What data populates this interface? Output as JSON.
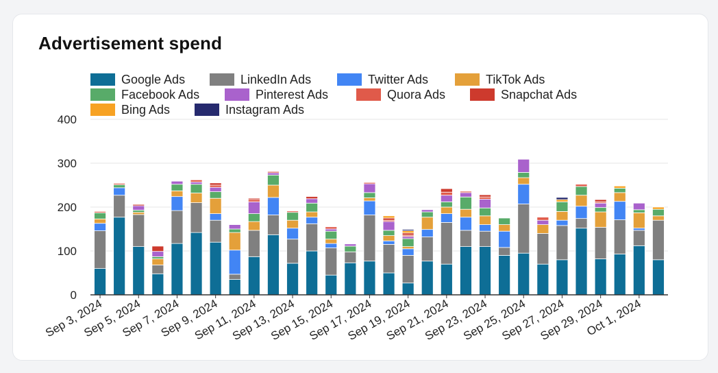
{
  "title": "Advertisement spend",
  "chart_data": {
    "type": "bar",
    "stacked": true,
    "title": "Advertisement spend",
    "xlabel": "",
    "ylabel": "",
    "ylim": [
      0,
      400
    ],
    "y_ticks": [
      0,
      100,
      200,
      300,
      400
    ],
    "grid": true,
    "legend_position": "top-left",
    "categories": [
      "Sep 3, 2024",
      "Sep 4, 2024",
      "Sep 5, 2024",
      "Sep 6, 2024",
      "Sep 7, 2024",
      "Sep 8, 2024",
      "Sep 9, 2024",
      "Sep 10, 2024",
      "Sep 11, 2024",
      "Sep 12, 2024",
      "Sep 13, 2024",
      "Sep 14, 2024",
      "Sep 15, 2024",
      "Sep 16, 2024",
      "Sep 17, 2024",
      "Sep 18, 2024",
      "Sep 19, 2024",
      "Sep 20, 2024",
      "Sep 21, 2024",
      "Sep 22, 2024",
      "Sep 23, 2024",
      "Sep 24, 2024",
      "Sep 25, 2024",
      "Sep 26, 2024",
      "Sep 27, 2024",
      "Sep 28, 2024",
      "Sep 29, 2024",
      "Sep 30, 2024",
      "Oct 1, 2024",
      "Oct 2, 2024"
    ],
    "x_tick_labels": [
      "Sep 3, 2024",
      "",
      "Sep 5, 2024",
      "",
      "Sep 7, 2024",
      "",
      "Sep 9, 2024",
      "",
      "Sep 11, 2024",
      "",
      "Sep 13, 2024",
      "",
      "Sep 15, 2024",
      "",
      "Sep 17, 2024",
      "",
      "Sep 19, 2024",
      "",
      "Sep 21, 2024",
      "",
      "Sep 23, 2024",
      "",
      "Sep 25, 2024",
      "",
      "Sep 27, 2024",
      "",
      "Sep 29, 2024",
      "",
      "Oct 1, 2024",
      ""
    ],
    "series": [
      {
        "name": "Google Ads",
        "color": "#0e6e96",
        "values": [
          60,
          177,
          110,
          48,
          117,
          142,
          120,
          35,
          87,
          137,
          72,
          100,
          45,
          73,
          77,
          50,
          27,
          77,
          70,
          110,
          110,
          90,
          95,
          70,
          80,
          152,
          82,
          93,
          112,
          80
        ]
      },
      {
        "name": "LinkedIn Ads",
        "color": "#808080",
        "values": [
          86,
          50,
          73,
          20,
          75,
          68,
          50,
          12,
          60,
          45,
          55,
          62,
          62,
          25,
          105,
          65,
          63,
          55,
          95,
          37,
          35,
          18,
          112,
          70,
          78,
          22,
          72,
          78,
          35,
          90
        ]
      },
      {
        "name": "Twitter Ads",
        "color": "#4285f4",
        "values": [
          17,
          17,
          0,
          0,
          32,
          0,
          15,
          55,
          0,
          40,
          25,
          15,
          10,
          0,
          32,
          8,
          15,
          17,
          20,
          30,
          15,
          37,
          45,
          0,
          12,
          28,
          0,
          42,
          5,
          0
        ]
      },
      {
        "name": "TikTok Ads",
        "color": "#e4a03a",
        "values": [
          10,
          0,
          5,
          14,
          13,
          22,
          35,
          40,
          20,
          28,
          18,
          12,
          10,
          0,
          7,
          12,
          5,
          28,
          15,
          18,
          20,
          15,
          15,
          20,
          20,
          25,
          35,
          20,
          35,
          10
        ]
      },
      {
        "name": "Facebook Ads",
        "color": "#58ab69",
        "values": [
          14,
          7,
          5,
          5,
          15,
          20,
          15,
          8,
          18,
          23,
          18,
          20,
          18,
          13,
          12,
          12,
          18,
          12,
          12,
          28,
          18,
          15,
          12,
          0,
          22,
          20,
          10,
          10,
          7,
          15
        ]
      },
      {
        "name": "Pinterest Ads",
        "color": "#a962cc",
        "values": [
          0,
          0,
          10,
          12,
          7,
          5,
          10,
          10,
          27,
          5,
          0,
          10,
          5,
          5,
          20,
          20,
          5,
          5,
          15,
          10,
          20,
          0,
          30,
          10,
          0,
          0,
          10,
          0,
          15,
          0
        ]
      },
      {
        "name": "Quora Ads",
        "color": "#e05a4a",
        "values": [
          3,
          3,
          0,
          0,
          0,
          5,
          5,
          0,
          5,
          3,
          3,
          0,
          5,
          0,
          3,
          3,
          3,
          0,
          7,
          3,
          5,
          0,
          0,
          7,
          0,
          5,
          3,
          0,
          0,
          0
        ]
      },
      {
        "name": "Snapchat Ads",
        "color": "#cd3a2d",
        "values": [
          0,
          0,
          3,
          12,
          0,
          0,
          5,
          0,
          3,
          0,
          0,
          5,
          0,
          0,
          0,
          5,
          5,
          0,
          8,
          0,
          5,
          0,
          0,
          0,
          0,
          0,
          5,
          0,
          0,
          0
        ]
      },
      {
        "name": "Bing Ads",
        "color": "#f7a223",
        "values": [
          0,
          0,
          0,
          0,
          0,
          0,
          0,
          0,
          0,
          0,
          0,
          0,
          0,
          0,
          0,
          5,
          5,
          0,
          0,
          0,
          0,
          0,
          0,
          0,
          5,
          0,
          0,
          5,
          0,
          5
        ]
      },
      {
        "name": "Instagram Ads",
        "color": "#262a6e",
        "values": [
          0,
          0,
          0,
          0,
          0,
          0,
          0,
          0,
          0,
          0,
          0,
          0,
          0,
          0,
          0,
          0,
          3,
          0,
          0,
          0,
          0,
          0,
          0,
          0,
          5,
          0,
          0,
          0,
          0,
          0
        ]
      }
    ]
  }
}
